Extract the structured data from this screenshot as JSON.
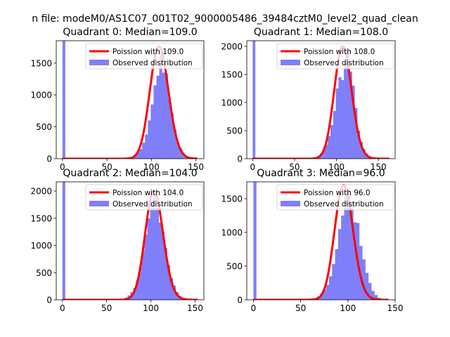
{
  "figure": {
    "suptitle": "n file: modeM0/AS1C07_001T02_9000005486_39484cztM0_level2_quad_clean"
  },
  "colors": {
    "histogram": "#7f7ffa",
    "poisson": "#ff0000",
    "axes": "#000000",
    "background": "#ffffff"
  },
  "chart_data": [
    {
      "type": "bar",
      "title": "Quadrant 0: Median=109.0",
      "xlim": [
        -7,
        159
      ],
      "ylim": [
        0,
        1850
      ],
      "xticks": [
        0,
        50,
        100,
        150
      ],
      "yticks": [
        0,
        500,
        1000,
        1500
      ],
      "legend": {
        "placement": "top-right",
        "entries": [
          "Poission with 109.0",
          "Observed distribution"
        ]
      },
      "series": [
        {
          "name": "Observed distribution",
          "kind": "histogram",
          "bin_width": 3.2,
          "zero_bin_value": 1900,
          "x": [
            70.4,
            73.6,
            76.8,
            80,
            83.2,
            86.4,
            89.6,
            92.8,
            96,
            99.2,
            102.4,
            105.6,
            108.8,
            112,
            115.2,
            118.4,
            121.6,
            124.8,
            128,
            131.2,
            134.4,
            137.6,
            140.8,
            144
          ],
          "values": [
            5,
            15,
            30,
            60,
            100,
            150,
            250,
            380,
            600,
            850,
            1150,
            1300,
            1650,
            1350,
            1330,
            950,
            700,
            450,
            250,
            150,
            80,
            40,
            20,
            10
          ]
        },
        {
          "name": "Poission with 109.0",
          "kind": "poisson",
          "mean": 109.0,
          "peak": 1760
        }
      ]
    },
    {
      "type": "bar",
      "title": "Quadrant 1: Median=108.0",
      "xlim": [
        -7,
        170
      ],
      "ylim": [
        0,
        2100
      ],
      "xticks": [
        0,
        50,
        100,
        150
      ],
      "yticks": [
        0,
        500,
        1000,
        1500,
        2000
      ],
      "legend": {
        "placement": "top-right",
        "entries": [
          "Poission with 108.0",
          "Observed distribution"
        ]
      },
      "series": [
        {
          "name": "Observed distribution",
          "kind": "histogram",
          "bin_width": 3.2,
          "zero_bin_value": 2150,
          "x": [
            70.4,
            73.6,
            76.8,
            80,
            83.2,
            86.4,
            89.6,
            92.8,
            96,
            99.2,
            102.4,
            105.6,
            108.8,
            112,
            115.2,
            118.4,
            121.6,
            124.8,
            128,
            131.2,
            134.4,
            137.6,
            140.8,
            144,
            147.2
          ],
          "values": [
            10,
            25,
            50,
            90,
            150,
            250,
            400,
            600,
            850,
            1250,
            1450,
            1400,
            1700,
            1900,
            1550,
            1300,
            900,
            500,
            300,
            170,
            90,
            45,
            20,
            10,
            5
          ]
        },
        {
          "name": "Poission with 108.0",
          "kind": "poisson",
          "mean": 108.0,
          "peak": 2000
        }
      ]
    },
    {
      "type": "bar",
      "title": "Quadrant 2: Median=104.0",
      "xlim": [
        -7,
        160
      ],
      "ylim": [
        0,
        2170
      ],
      "xticks": [
        0,
        50,
        100,
        150
      ],
      "yticks": [
        0,
        500,
        1000,
        1500,
        2000
      ],
      "legend": {
        "placement": "top-right",
        "entries": [
          "Poission with 104.0",
          "Observed distribution"
        ]
      },
      "series": [
        {
          "name": "Observed distribution",
          "kind": "histogram",
          "bin_width": 3.2,
          "zero_bin_value": 2200,
          "x": [
            64,
            67.2,
            70.4,
            73.6,
            76.8,
            80,
            83.2,
            86.4,
            89.6,
            92.8,
            96,
            99.2,
            102.4,
            105.6,
            108.8,
            112,
            115.2,
            118.4,
            121.6,
            124.8,
            128,
            131.2,
            134.4,
            137.6,
            140.8
          ],
          "values": [
            10,
            20,
            40,
            80,
            140,
            220,
            350,
            600,
            900,
            1200,
            1500,
            1830,
            1930,
            1700,
            1420,
            1250,
            950,
            640,
            400,
            260,
            140,
            70,
            35,
            15,
            5
          ]
        },
        {
          "name": "Poission with 104.0",
          "kind": "poisson",
          "mean": 104.0,
          "peak": 2000
        }
      ]
    },
    {
      "type": "bar",
      "title": "Quadrant 3: Median=96.0",
      "xlim": [
        -7,
        150
      ],
      "ylim": [
        0,
        1750
      ],
      "xticks": [
        0,
        50,
        100,
        150
      ],
      "yticks": [
        0,
        500,
        1000,
        1500
      ],
      "legend": {
        "placement": "top-right",
        "entries": [
          "Poission with 96.0",
          "Observed distribution"
        ]
      },
      "series": [
        {
          "name": "Observed distribution",
          "kind": "histogram",
          "bin_width": 3.2,
          "zero_bin_value": 1800,
          "x": [
            60.8,
            64,
            67.2,
            70.4,
            73.6,
            76.8,
            80,
            83.2,
            86.4,
            89.6,
            92.8,
            96,
            99.2,
            102.4,
            105.6,
            108.8,
            112,
            115.2,
            118.4,
            121.6,
            124.8,
            128,
            131.2,
            134.4
          ],
          "values": [
            10,
            25,
            50,
            90,
            150,
            220,
            350,
            530,
            750,
            1050,
            1250,
            1540,
            1620,
            1450,
            1150,
            1140,
            800,
            600,
            400,
            250,
            130,
            70,
            30,
            10
          ]
        },
        {
          "name": "Poission with 96.0",
          "kind": "poisson",
          "mean": 96.0,
          "peak": 1700
        }
      ]
    }
  ]
}
